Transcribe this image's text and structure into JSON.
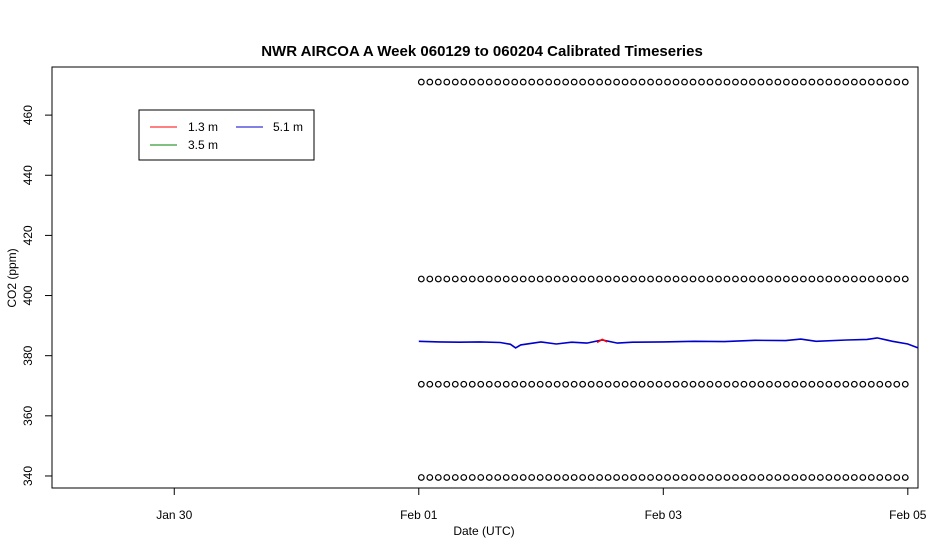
{
  "chart_data": {
    "type": "line",
    "title": "NWR AIRCOA A  Week 060129 to 060204  Calibrated Timeseries",
    "xlabel": "Date (UTC)",
    "ylabel": "CO2 (ppm)",
    "xlim": [
      "2006-01-29T00:00",
      "2006-02-05T02:00"
    ],
    "ylim": [
      336,
      476
    ],
    "x_ticks": [
      {
        "label": "Jan 30",
        "value": "2006-01-30T00:00"
      },
      {
        "label": "Feb 01",
        "value": "2006-02-01T00:00"
      },
      {
        "label": "Feb 03",
        "value": "2006-02-03T00:00"
      },
      {
        "label": "Feb 05",
        "value": "2006-02-05T00:00"
      }
    ],
    "y_ticks": [
      340,
      360,
      380,
      400,
      420,
      440,
      460
    ],
    "legend": {
      "placement": "top-left",
      "entries": [
        {
          "label": "1.3 m",
          "color": "#ff0000"
        },
        {
          "label": "3.5 m",
          "color": "#008000"
        },
        {
          "label": "5.1 m",
          "color": "#0000cc"
        }
      ]
    },
    "series": [
      {
        "name": "5.1 m",
        "color": "#0000cc",
        "points": [
          [
            "2006-02-01T00:00",
            384.8
          ],
          [
            "2006-02-01T04:00",
            384.6
          ],
          [
            "2006-02-01T08:00",
            384.5
          ],
          [
            "2006-02-01T12:00",
            384.6
          ],
          [
            "2006-02-01T16:00",
            384.4
          ],
          [
            "2006-02-01T18:00",
            383.8
          ],
          [
            "2006-02-01T19:00",
            382.6
          ],
          [
            "2006-02-01T20:00",
            383.6
          ],
          [
            "2006-02-02T00:00",
            384.6
          ],
          [
            "2006-02-02T03:00",
            383.9
          ],
          [
            "2006-02-02T06:00",
            384.5
          ],
          [
            "2006-02-02T09:00",
            384.2
          ],
          [
            "2006-02-02T12:00",
            385.2
          ],
          [
            "2006-02-02T15:00",
            384.2
          ],
          [
            "2006-02-02T18:00",
            384.5
          ],
          [
            "2006-02-03T00:00",
            384.6
          ],
          [
            "2006-02-03T06:00",
            384.8
          ],
          [
            "2006-02-03T12:00",
            384.7
          ],
          [
            "2006-02-03T18:00",
            385.1
          ],
          [
            "2006-02-04T00:00",
            385.0
          ],
          [
            "2006-02-04T03:00",
            385.5
          ],
          [
            "2006-02-04T06:00",
            384.8
          ],
          [
            "2006-02-04T12:00",
            385.2
          ],
          [
            "2006-02-04T16:00",
            385.4
          ],
          [
            "2006-02-04T18:00",
            385.9
          ],
          [
            "2006-02-04T21:00",
            384.8
          ],
          [
            "2006-02-05T00:00",
            383.9
          ],
          [
            "2006-02-05T02:00",
            382.6
          ]
        ]
      },
      {
        "name": "1.3 m",
        "color": "#ff0000",
        "points": [
          [
            "2006-02-02T11:00",
            384.4
          ],
          [
            "2006-02-02T12:00",
            385.4
          ],
          [
            "2006-02-02T13:00",
            384.6
          ]
        ]
      }
    ],
    "marker_series": [
      {
        "symbol": "o",
        "y": 471,
        "x_start": "2006-02-01T00:30",
        "x_end": "2006-02-05T00:00",
        "interval_minutes": 100
      },
      {
        "symbol": "o",
        "y": 405.5,
        "x_start": "2006-02-01T00:30",
        "x_end": "2006-02-05T00:00",
        "interval_minutes": 100
      },
      {
        "symbol": "o",
        "y": 370.5,
        "x_start": "2006-02-01T00:30",
        "x_end": "2006-02-05T00:00",
        "interval_minutes": 100
      },
      {
        "symbol": "o",
        "y": 339.5,
        "x_start": "2006-02-01T00:30",
        "x_end": "2006-02-05T00:00",
        "interval_minutes": 100
      }
    ]
  }
}
